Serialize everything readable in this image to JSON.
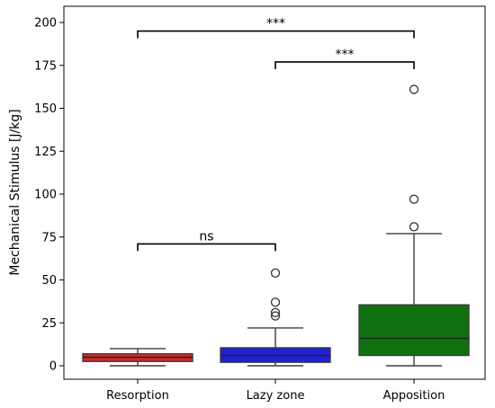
{
  "chart_data": {
    "type": "box",
    "title": "",
    "xlabel": "",
    "ylabel": "Mechanical Stimulus [J/kg]",
    "ylim": [
      -8,
      210
    ],
    "yticks": [
      0,
      25,
      50,
      75,
      100,
      125,
      150,
      175,
      200
    ],
    "categories": [
      "Resorption",
      "Lazy zone",
      "Apposition"
    ],
    "boxes": [
      {
        "category": "Resorption",
        "color": "#d62728",
        "whisker_low": 0,
        "q1": 2.5,
        "median": 5,
        "q3": 7,
        "whisker_high": 10,
        "outliers": []
      },
      {
        "category": "Lazy zone",
        "color": "#1f1fd6",
        "whisker_low": 0,
        "q1": 2,
        "median": 6,
        "q3": 10.5,
        "whisker_high": 22,
        "outliers": [
          29,
          31,
          37,
          54
        ]
      },
      {
        "category": "Apposition",
        "color": "#107010",
        "whisker_low": 0,
        "q1": 6,
        "median": 16,
        "q3": 35.5,
        "whisker_high": 77,
        "outliers": [
          81,
          97,
          161
        ]
      }
    ],
    "significance": [
      {
        "from": "Resorption",
        "to": "Lazy zone",
        "label": "ns",
        "y": 71
      },
      {
        "from": "Lazy zone",
        "to": "Apposition",
        "label": "***",
        "y": 177
      },
      {
        "from": "Resorption",
        "to": "Apposition",
        "label": "***",
        "y": 195
      }
    ]
  }
}
